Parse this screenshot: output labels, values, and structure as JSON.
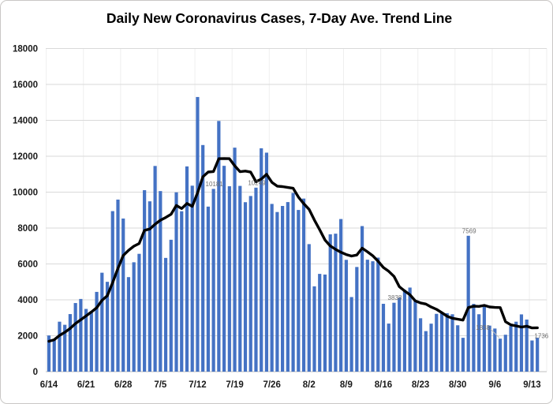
{
  "figure": {
    "title": "Daily New Coronavirus Cases, 7-Day Ave. Trend Line"
  },
  "chart_data": {
    "type": "bar",
    "title": "Daily New Coronavirus Cases, 7-Day Ave. Trend Line",
    "xlabel": "",
    "ylabel": "",
    "ylim": [
      0,
      18000
    ],
    "y_ticks": [
      0,
      2000,
      4000,
      6000,
      8000,
      10000,
      12000,
      14000,
      16000,
      18000
    ],
    "x_tick_labels": [
      "6/14",
      "6/21",
      "6/28",
      "7/5",
      "7/12",
      "7/19",
      "7/26",
      "8/2",
      "8/9",
      "8/16",
      "8/23",
      "8/30",
      "9/6",
      "9/13"
    ],
    "grid": true,
    "legend_position": "none",
    "x": [
      "6/14",
      "6/15",
      "6/16",
      "6/17",
      "6/18",
      "6/19",
      "6/20",
      "6/21",
      "6/22",
      "6/23",
      "6/24",
      "6/25",
      "6/26",
      "6/27",
      "6/28",
      "6/29",
      "6/30",
      "7/1",
      "7/2",
      "7/3",
      "7/4",
      "7/5",
      "7/6",
      "7/7",
      "7/8",
      "7/9",
      "7/10",
      "7/11",
      "7/12",
      "7/13",
      "7/14",
      "7/15",
      "7/16",
      "7/17",
      "7/18",
      "7/19",
      "7/20",
      "7/21",
      "7/22",
      "7/23",
      "7/24",
      "7/25",
      "7/26",
      "7/27",
      "7/28",
      "7/29",
      "7/30",
      "7/31",
      "8/1",
      "8/2",
      "8/3",
      "8/4",
      "8/5",
      "8/6",
      "8/7",
      "8/8",
      "8/9",
      "8/10",
      "8/11",
      "8/12",
      "8/13",
      "8/14",
      "8/15",
      "8/16",
      "8/17",
      "8/18",
      "8/19",
      "8/20",
      "8/21",
      "8/22",
      "8/23",
      "8/24",
      "8/25",
      "8/26",
      "8/27",
      "8/28",
      "8/29",
      "8/30",
      "8/31",
      "9/1",
      "9/2",
      "9/3",
      "9/4",
      "9/5",
      "9/6",
      "9/7",
      "9/8",
      "9/9",
      "9/10",
      "9/11",
      "9/12",
      "9/13",
      "9/14"
    ],
    "series": [
      {
        "name": "Daily New Cases",
        "type": "bar",
        "color": "#4472C4",
        "values": [
          2016,
          1758,
          2783,
          2610,
          3207,
          3822,
          4049,
          3494,
          3286,
          4443,
          5511,
          5004,
          8942,
          9585,
          8530,
          5266,
          6093,
          6563,
          10109,
          9488,
          11458,
          10059,
          6336,
          7347,
          9989,
          8935,
          11433,
          10360,
          15300,
          12624,
          9194,
          10181,
          13965,
          11466,
          10328,
          12478,
          10347,
          9440,
          9785,
          10249,
          12444,
          12199,
          9344,
          8892,
          9230,
          9446,
          9956,
          9007,
          9642,
          7104,
          4752,
          5446,
          5409,
          7650,
          7686,
          8502,
          6229,
          4155,
          5831,
          8109,
          6236,
          6148,
          6352,
          3779,
          2678,
          3838,
          4115,
          4555,
          4684,
          3950,
          2974,
          2258,
          2673,
          3220,
          3269,
          3257,
          3197,
          2583,
          1885,
          7569,
          3773,
          3198,
          3650,
          2564,
          2402,
          1838,
          2056,
          2541,
          2783,
          3190,
          2902,
          1736,
          1885
        ]
      },
      {
        "name": "7-Day Ave. Trend Line",
        "type": "line",
        "color": "#000000",
        "values": [
          1692,
          1775,
          2016,
          2193,
          2408,
          2682,
          2892,
          3103,
          3322,
          3559,
          3973,
          4230,
          4961,
          5752,
          6472,
          6754,
          6990,
          7140,
          7870,
          7948,
          8215,
          8434,
          8587,
          8766,
          9255,
          9087,
          9365,
          9208,
          9957,
          10855,
          11119,
          11147,
          11865,
          11870,
          11865,
          11462,
          11137,
          11172,
          11116,
          10585,
          10724,
          10992,
          10544,
          10336,
          10306,
          10258,
          10216,
          9725,
          9360,
          9040,
          8448,
          7908,
          7331,
          7001,
          6813,
          6650,
          6525,
          6440,
          6495,
          6880,
          6678,
          6459,
          6151,
          5801,
          5590,
          5306,
          4735,
          4495,
          4286,
          3943,
          3828,
          3768,
          3601,
          3473,
          3290,
          3086,
          2978,
          2922,
          2869,
          3569,
          3648,
          3637,
          3694,
          3603,
          3577,
          3571,
          2783,
          2607,
          2548,
          2482,
          2530,
          2435,
          2442
        ]
      }
    ],
    "annotations": [
      {
        "text": "10181",
        "x": "7/15",
        "value": 10181,
        "placement": "above"
      },
      {
        "text": "10249",
        "x": "7/23",
        "value": 10249,
        "placement": "above"
      },
      {
        "text": "3838",
        "x": "8/18",
        "value": 3838,
        "placement": "above"
      },
      {
        "text": "7569",
        "x": "9/1",
        "value": 7569,
        "placement": "above"
      },
      {
        "text": "1838",
        "x": "9/7",
        "value": 1838,
        "placement": "left-leader"
      },
      {
        "text": "1736",
        "x": "9/13",
        "value": 1736,
        "placement": "right"
      }
    ],
    "colors": {
      "bar": "#4472C4",
      "trend_line": "#000000",
      "gridline": "#D9D9D9",
      "minor_vertical_gridline": "#EFEFEF",
      "axis_line": "#BFBFBF",
      "axis_text": "#1a1a1a",
      "annotation_text": "#6e6e6e",
      "figure_border": "#c9c7c5"
    }
  }
}
